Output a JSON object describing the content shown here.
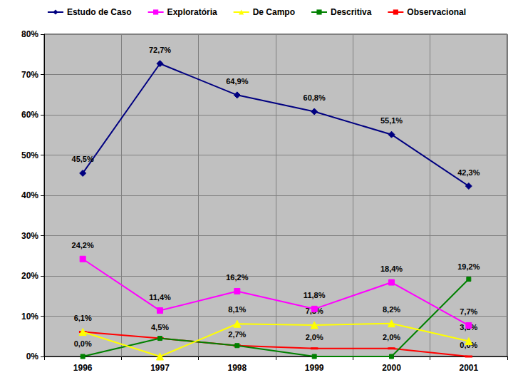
{
  "chart_data": {
    "type": "line",
    "categories": [
      "1996",
      "1997",
      "1998",
      "1999",
      "2000",
      "2001"
    ],
    "series": [
      {
        "name": "Estudo de Caso",
        "color": "#000080",
        "marker": "diamond",
        "values": [
          45.5,
          72.7,
          64.9,
          60.8,
          55.1,
          42.3
        ],
        "value_labels": [
          "45,5%",
          "72,7%",
          "64,9%",
          "60,8%",
          "55,1%",
          "42,3%"
        ]
      },
      {
        "name": "Exploratória",
        "color": "#ff00ff",
        "marker": "square",
        "values": [
          24.2,
          11.4,
          16.2,
          11.8,
          18.4,
          7.7
        ],
        "value_labels": [
          "24,2%",
          "11,4%",
          "16,2%",
          "11,8%",
          "18,4%",
          "7,7%"
        ]
      },
      {
        "name": "De Campo",
        "color": "#ffff00",
        "marker": "triangle",
        "values": [
          6.1,
          0.0,
          8.1,
          7.8,
          8.2,
          3.8
        ],
        "value_labels": [
          "6,1%",
          null,
          "8,1%",
          "7,8%",
          "8,2%",
          "3,8%"
        ]
      },
      {
        "name": "Descritiva",
        "color": "#008000",
        "marker": "square",
        "values": [
          0.0,
          4.5,
          2.7,
          0.0,
          0.0,
          19.2
        ],
        "value_labels": [
          "0,0%",
          null,
          null,
          null,
          null,
          "19,2%"
        ]
      },
      {
        "name": "Observacional",
        "color": "#ff0000",
        "marker": "dash",
        "values": [
          6.1,
          4.5,
          2.7,
          2.0,
          2.0,
          0.0
        ],
        "value_labels": [
          null,
          "4,5%",
          "2,7%",
          "2,0%",
          "2,0%",
          "0,0%"
        ]
      }
    ],
    "ylim": [
      0,
      80
    ],
    "yticks": [
      {
        "value": 0,
        "label": "0%"
      },
      {
        "value": 10,
        "label": "10%"
      },
      {
        "value": 20,
        "label": "20%"
      },
      {
        "value": 30,
        "label": "30%"
      },
      {
        "value": 40,
        "label": "40%"
      },
      {
        "value": 50,
        "label": "50%"
      },
      {
        "value": 60,
        "label": "60%"
      },
      {
        "value": 70,
        "label": "70%"
      },
      {
        "value": 80,
        "label": "80%"
      }
    ],
    "grid": true,
    "legend": "top",
    "data_labels": true
  }
}
